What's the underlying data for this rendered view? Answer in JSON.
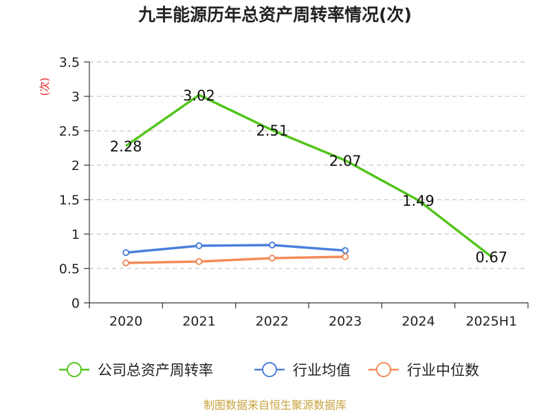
{
  "chart_data": {
    "type": "line",
    "title": "九丰能源历年总资产周转率情况(次)",
    "ylabel": "(次)",
    "xlabel": "",
    "categories": [
      "2020",
      "2021",
      "2022",
      "2023",
      "2024",
      "2025H1"
    ],
    "ylim": [
      0,
      3.5
    ],
    "yticks": [
      "0",
      "0.5",
      "1",
      "1.5",
      "2",
      "2.5",
      "3",
      "3.5"
    ],
    "grid": true,
    "legend_position": "bottom",
    "series": [
      {
        "name": "公司总资产周转率",
        "color": "#52c41a",
        "values": [
          2.28,
          3.02,
          2.51,
          2.07,
          1.49,
          0.67
        ],
        "labels": [
          "2.28",
          "3.02",
          "2.51",
          "2.07",
          "1.49",
          "0.67"
        ],
        "markers": false
      },
      {
        "name": "行业均值",
        "color": "#4a7fdc",
        "values": [
          0.73,
          0.83,
          0.84,
          0.76,
          null,
          null
        ],
        "markers": true
      },
      {
        "name": "行业中位数",
        "color": "#f28b59",
        "values": [
          0.58,
          0.6,
          0.65,
          0.67,
          null,
          null
        ],
        "markers": true
      }
    ],
    "source": "制图数据来自恒生聚源数据库",
    "source_color": "#c8a23c",
    "ylabel_color": "#e02020"
  }
}
